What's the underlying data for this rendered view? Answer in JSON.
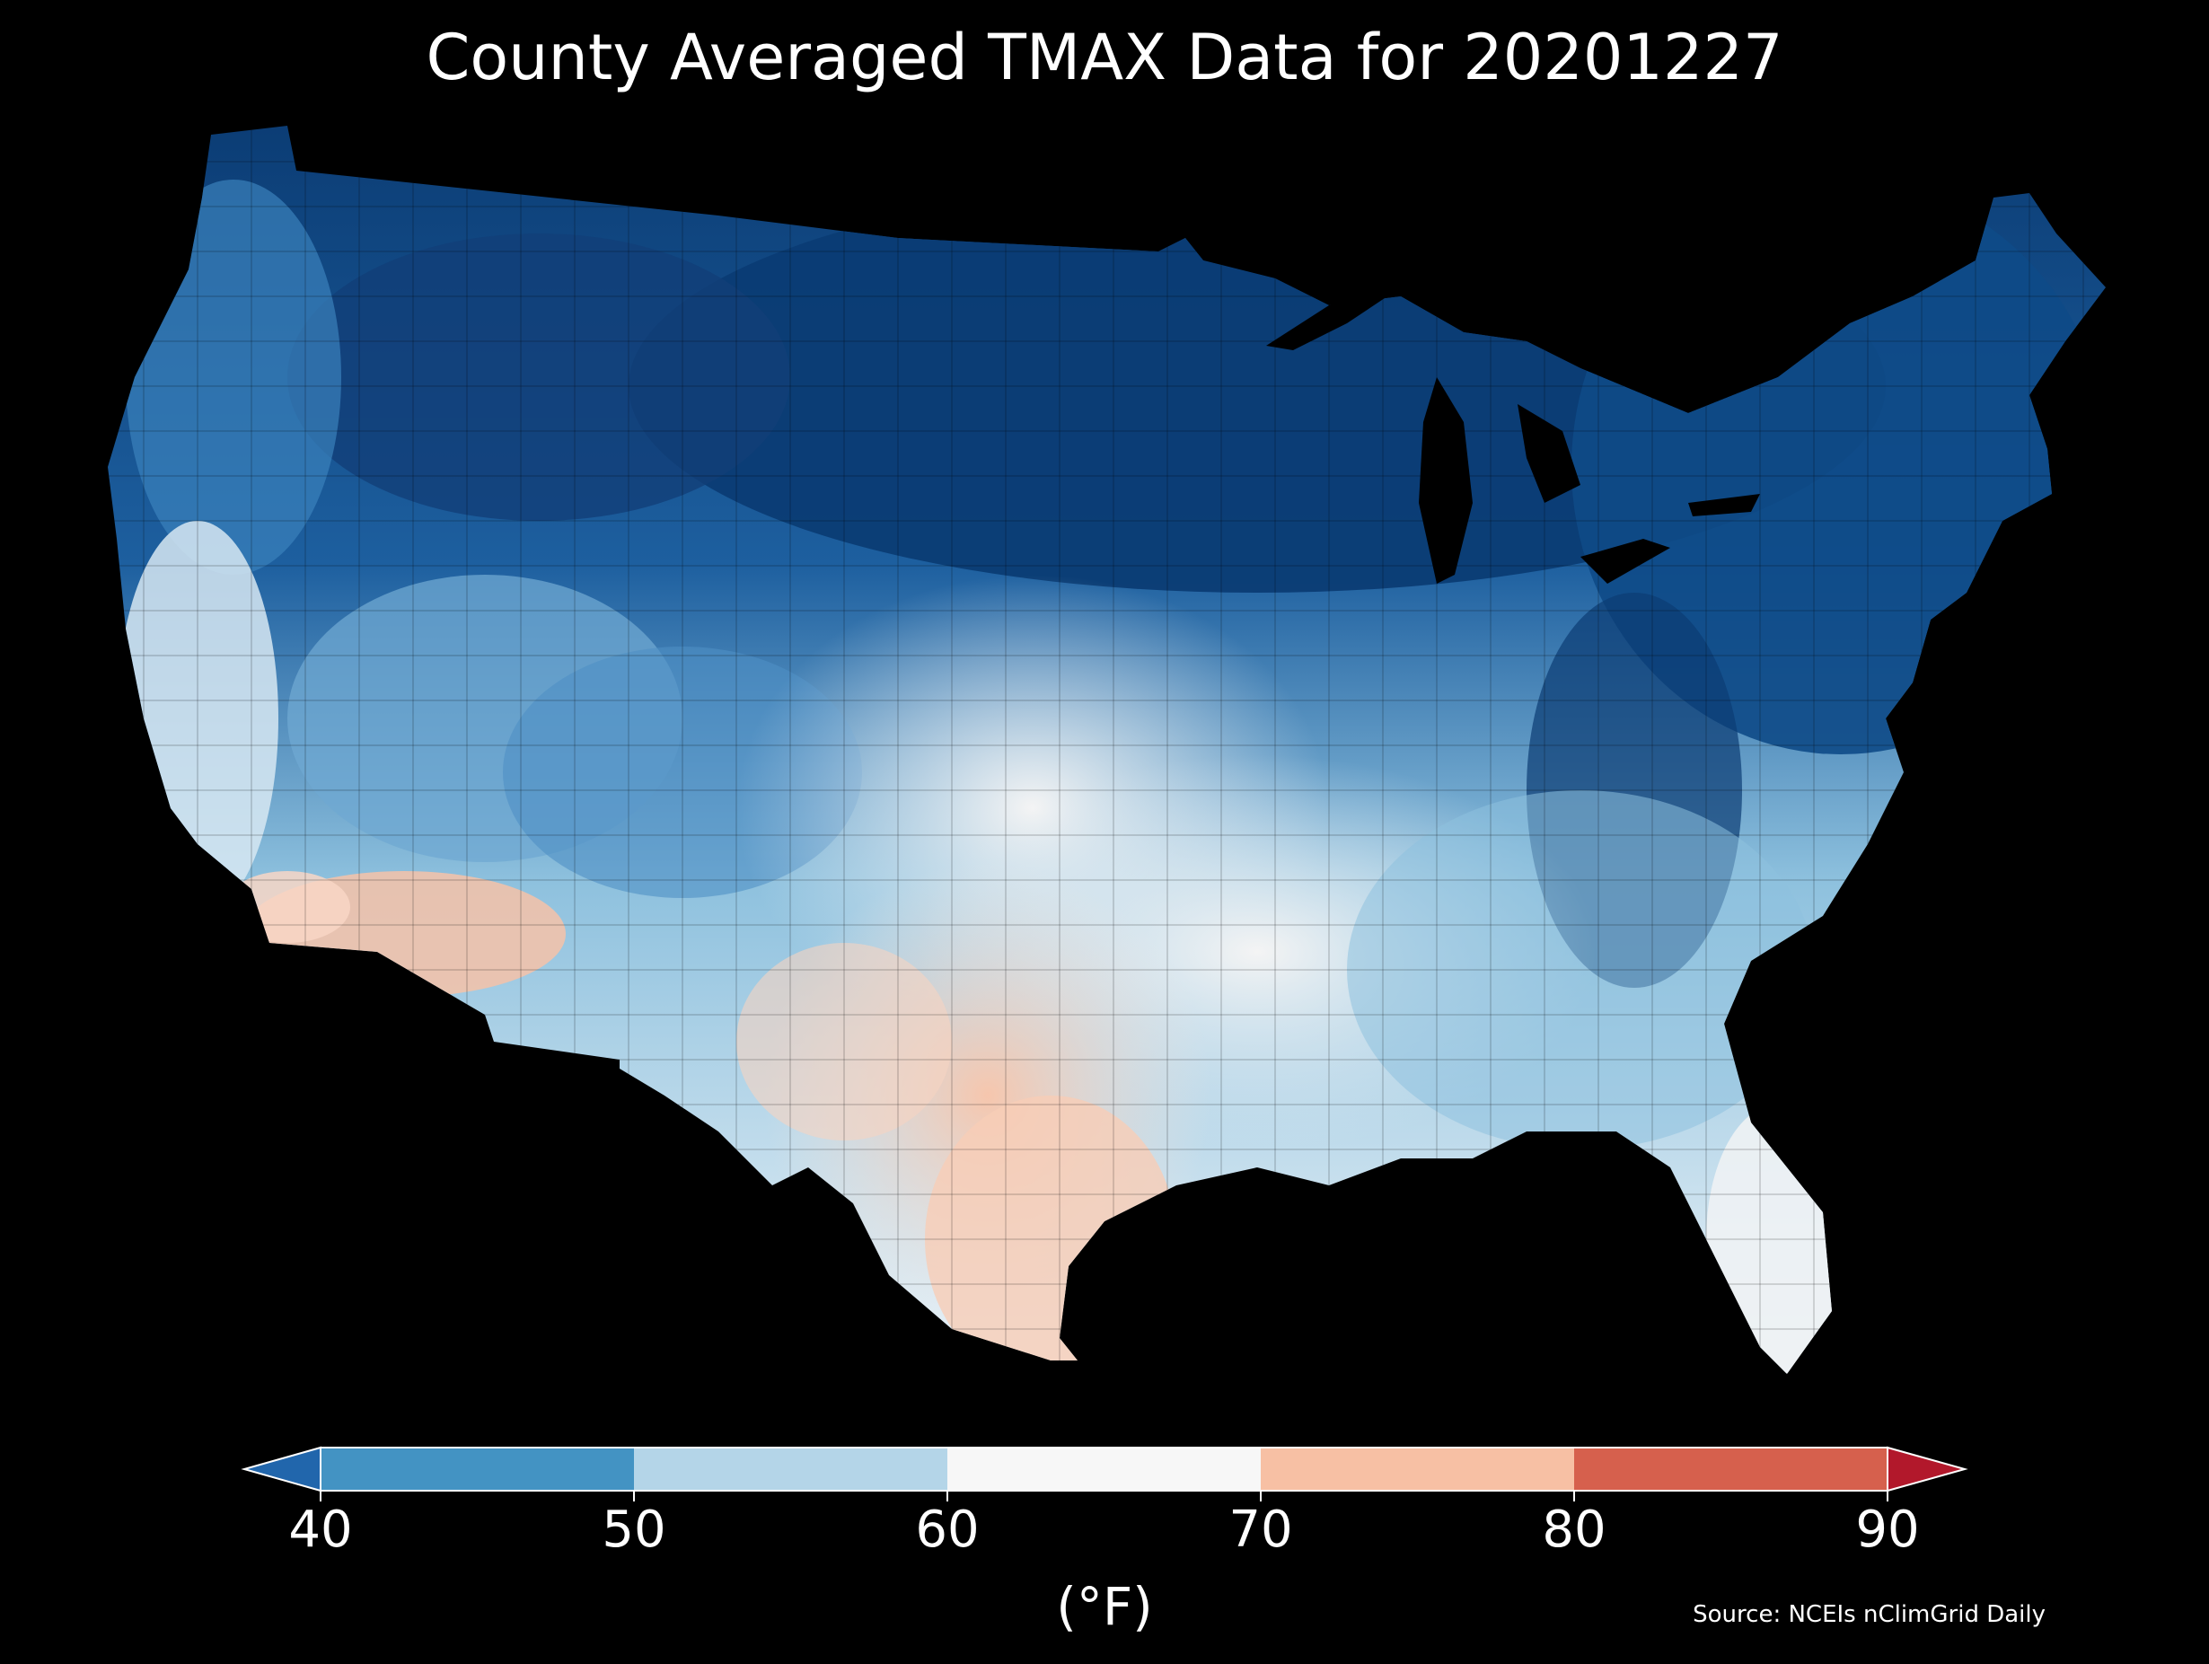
{
  "title": "County Averaged TMAX Data for 20201227",
  "colorbar": {
    "ticks": [
      "40",
      "50",
      "60",
      "70",
      "80",
      "90"
    ],
    "tick_values": [
      40,
      50,
      60,
      70,
      80,
      90
    ],
    "unit": "(°F)",
    "bins": [
      {
        "from": 30,
        "to": 40,
        "color": "#2166ac"
      },
      {
        "from": 40,
        "to": 50,
        "color": "#4393c3"
      },
      {
        "from": 50,
        "to": 60,
        "color": "#b4d5e8"
      },
      {
        "from": 60,
        "to": 70,
        "color": "#f7f7f7"
      },
      {
        "from": 70,
        "to": 80,
        "color": "#f7c0a4"
      },
      {
        "from": 80,
        "to": 90,
        "color": "#d6604d"
      },
      {
        "from": 90,
        "to": 100,
        "color": "#b2182b"
      }
    ],
    "extend_low_color": "#2166ac",
    "extend_high_color": "#b2182b"
  },
  "source": "Source: NCEIs nClimGrid Daily",
  "map": {
    "background": "#000000",
    "region": "contiguous-us-counties",
    "regional_temperature_pattern": [
      {
        "region": "Northern Plains / Upper Midwest / Great Lakes",
        "tmax_range": "<40"
      },
      {
        "region": "Northeast / Appalachians",
        "tmax_range": "<40 to 40-50"
      },
      {
        "region": "Northern Rockies",
        "tmax_range": "<40 to 40-50"
      },
      {
        "region": "Pacific Northwest",
        "tmax_range": "40-50"
      },
      {
        "region": "Southern Rockies / Great Basin",
        "tmax_range": "40-60"
      },
      {
        "region": "Central Plains / Mississippi Valley",
        "tmax_range": "60-70"
      },
      {
        "region": "Southeast",
        "tmax_range": "50-60"
      },
      {
        "region": "Florida",
        "tmax_range": "60-70"
      },
      {
        "region": "California coast / Central Valley",
        "tmax_range": "50-70"
      },
      {
        "region": "Southern Arizona / Southern California deserts",
        "tmax_range": "70-80"
      },
      {
        "region": "Texas",
        "tmax_range": "70-80"
      }
    ]
  }
}
